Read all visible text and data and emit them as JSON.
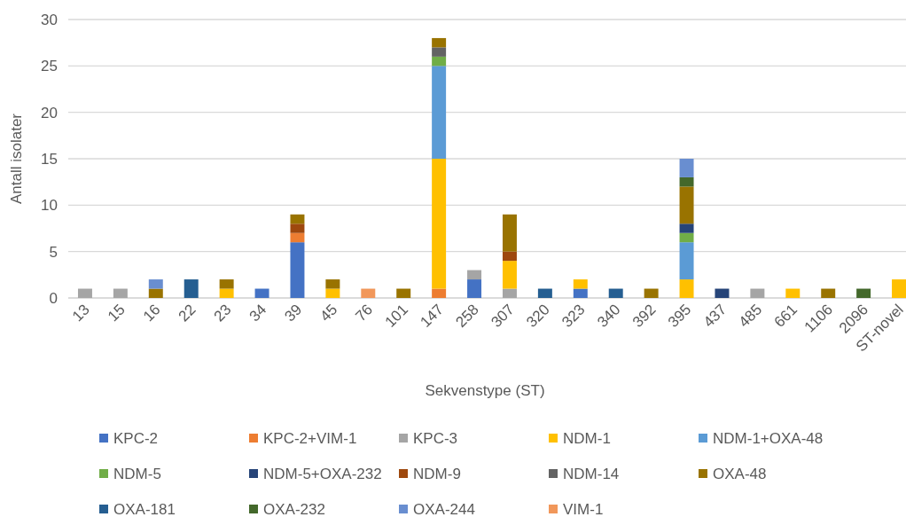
{
  "chart_data": {
    "type": "bar",
    "stacked": true,
    "xlabel": "Sekvenstype (ST)",
    "ylabel": "Antall isolater",
    "ylim": [
      0,
      30
    ],
    "yticks": [
      0,
      5,
      10,
      15,
      20,
      25,
      30
    ],
    "grid": "y",
    "legend": "bottom",
    "categories": [
      "13",
      "15",
      "16",
      "22",
      "23",
      "34",
      "39",
      "45",
      "76",
      "101",
      "147",
      "258",
      "307",
      "320",
      "323",
      "340",
      "392",
      "395",
      "437",
      "485",
      "661",
      "1106",
      "2096",
      "ST-novel"
    ],
    "series": [
      {
        "name": "KPC-2",
        "color": "#4472c4",
        "values": [
          null,
          null,
          null,
          null,
          null,
          1,
          6,
          null,
          null,
          null,
          null,
          2,
          null,
          null,
          1,
          null,
          null,
          null,
          null,
          null,
          null,
          null,
          null,
          null
        ]
      },
      {
        "name": "KPC-2+VIM-1",
        "color": "#ed7d31",
        "values": [
          null,
          null,
          null,
          null,
          null,
          null,
          1,
          null,
          null,
          null,
          1,
          null,
          null,
          null,
          null,
          null,
          null,
          null,
          null,
          null,
          null,
          null,
          null,
          null
        ]
      },
      {
        "name": "KPC-3",
        "color": "#a5a5a5",
        "values": [
          1,
          1,
          null,
          null,
          null,
          null,
          null,
          null,
          null,
          null,
          null,
          1,
          1,
          null,
          null,
          null,
          null,
          null,
          null,
          1,
          null,
          null,
          null,
          null
        ]
      },
      {
        "name": "NDM-1",
        "color": "#ffc000",
        "values": [
          null,
          null,
          null,
          null,
          1,
          null,
          null,
          1,
          null,
          null,
          14,
          null,
          3,
          null,
          1,
          null,
          null,
          2,
          null,
          null,
          1,
          null,
          null,
          2
        ]
      },
      {
        "name": "NDM-1+OXA-48",
        "color": "#5b9bd5",
        "values": [
          null,
          null,
          null,
          null,
          null,
          null,
          null,
          null,
          null,
          null,
          10,
          null,
          null,
          null,
          null,
          null,
          null,
          4,
          null,
          null,
          null,
          null,
          null,
          null
        ]
      },
      {
        "name": "NDM-5",
        "color": "#70ad47",
        "values": [
          null,
          null,
          null,
          null,
          null,
          null,
          null,
          null,
          null,
          null,
          1,
          null,
          null,
          null,
          null,
          null,
          null,
          1,
          null,
          null,
          null,
          null,
          null,
          null
        ]
      },
      {
        "name": "NDM-5+OXA-232",
        "color": "#264478",
        "values": [
          null,
          null,
          null,
          null,
          null,
          null,
          null,
          null,
          null,
          null,
          null,
          null,
          null,
          null,
          null,
          null,
          null,
          1,
          1,
          null,
          null,
          null,
          null,
          null
        ]
      },
      {
        "name": "NDM-9",
        "color": "#9e480e",
        "values": [
          null,
          null,
          null,
          null,
          null,
          null,
          1,
          null,
          null,
          null,
          null,
          null,
          1,
          null,
          null,
          null,
          null,
          null,
          null,
          null,
          null,
          null,
          null,
          null
        ]
      },
      {
        "name": "NDM-14",
        "color": "#636363",
        "values": [
          null,
          null,
          null,
          null,
          null,
          null,
          null,
          null,
          null,
          null,
          1,
          null,
          null,
          null,
          null,
          null,
          null,
          null,
          null,
          null,
          null,
          null,
          null,
          null
        ]
      },
      {
        "name": "OXA-48",
        "color": "#997300",
        "values": [
          null,
          null,
          1,
          null,
          1,
          null,
          1,
          1,
          null,
          1,
          1,
          null,
          4,
          null,
          null,
          null,
          1,
          4,
          null,
          null,
          null,
          1,
          null,
          null
        ]
      },
      {
        "name": "OXA-181",
        "color": "#255e91",
        "values": [
          null,
          null,
          null,
          2,
          null,
          null,
          null,
          null,
          null,
          null,
          null,
          null,
          null,
          1,
          null,
          1,
          null,
          null,
          null,
          null,
          null,
          null,
          null,
          null
        ]
      },
      {
        "name": "OXA-232",
        "color": "#43682b",
        "values": [
          null,
          null,
          null,
          null,
          null,
          null,
          null,
          null,
          null,
          null,
          null,
          null,
          null,
          null,
          null,
          null,
          null,
          1,
          null,
          null,
          null,
          null,
          1,
          null
        ]
      },
      {
        "name": "OXA-244",
        "color": "#698ed0",
        "values": [
          null,
          null,
          1,
          null,
          null,
          null,
          null,
          null,
          null,
          null,
          null,
          null,
          null,
          null,
          null,
          null,
          null,
          2,
          null,
          null,
          null,
          null,
          null,
          null
        ]
      },
      {
        "name": "VIM-1",
        "color": "#f1975a",
        "values": [
          null,
          null,
          null,
          null,
          null,
          null,
          null,
          null,
          1,
          null,
          null,
          null,
          null,
          null,
          null,
          null,
          null,
          null,
          null,
          null,
          null,
          null,
          null,
          null
        ]
      }
    ]
  }
}
